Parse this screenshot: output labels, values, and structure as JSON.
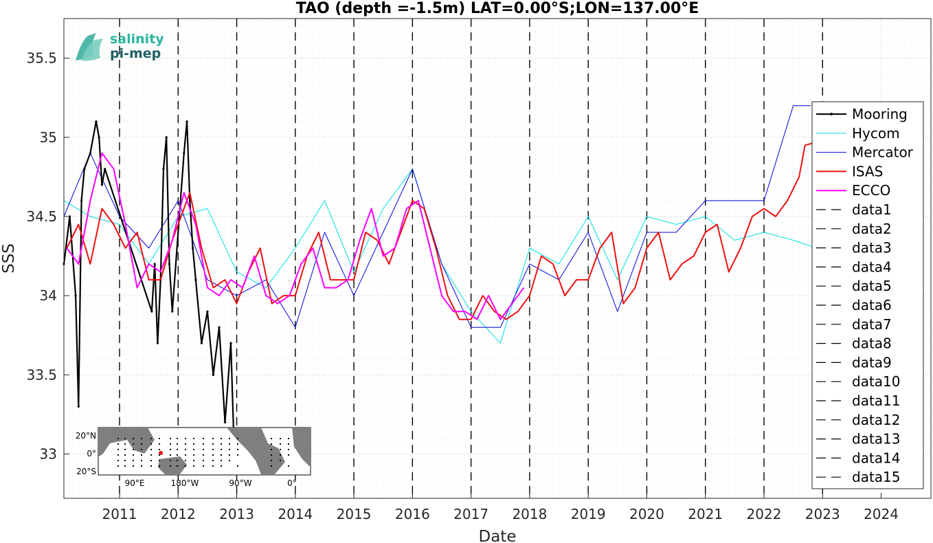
{
  "chart_data": {
    "type": "line",
    "title": "TAO (depth =-1.5m) LAT=0.00°S;LON=137.00°E",
    "xlabel": "Date",
    "ylabel": "SSS",
    "xlim": [
      2010.05,
      2024.85
    ],
    "ylim": [
      32.72,
      35.75
    ],
    "grid": "on (dotted major and minor)",
    "legend_placement": "right",
    "x_ticks": [
      2011,
      2012,
      2013,
      2014,
      2015,
      2016,
      2017,
      2018,
      2019,
      2020,
      2021,
      2022,
      2023,
      2024
    ],
    "x_tick_labels": [
      "2011",
      "2012",
      "2013",
      "2014",
      "2015",
      "2016",
      "2017",
      "2018",
      "2019",
      "2020",
      "2021",
      "2022",
      "2023",
      "2024"
    ],
    "y_ticks": [
      33,
      33.5,
      34,
      34.5,
      35,
      35.5
    ],
    "y_tick_labels": [
      "33",
      "33.5",
      "34",
      "34.5",
      "35",
      "35.5"
    ],
    "vertical_dashed_lines_x": [
      2011,
      2012,
      2013,
      2014,
      2015,
      2016,
      2017,
      2018,
      2019,
      2020,
      2021,
      2022,
      2023
    ],
    "series": [
      {
        "name": "Mooring",
        "color": "#000000",
        "style": "solid-dots",
        "x": [
          2010.05,
          2010.15,
          2010.25,
          2010.3,
          2010.35,
          2010.4,
          2010.5,
          2010.6,
          2010.65,
          2010.7,
          2010.75,
          2011.55,
          2011.6,
          2011.65,
          2011.7,
          2011.75,
          2011.8,
          2011.85,
          2011.9,
          2012.1,
          2012.15,
          2012.2,
          2012.25,
          2012.3,
          2012.4,
          2012.5,
          2012.6,
          2012.7,
          2012.8,
          2012.9,
          2012.95
        ],
        "y": [
          34.2,
          34.5,
          34.0,
          33.3,
          34.6,
          34.8,
          34.9,
          35.1,
          35.0,
          34.7,
          34.8,
          33.9,
          34.2,
          33.7,
          34.1,
          34.8,
          35.0,
          34.2,
          33.9,
          34.9,
          35.1,
          34.6,
          34.3,
          34.1,
          33.7,
          33.9,
          33.5,
          33.8,
          33.2,
          33.7,
          33.1
        ]
      },
      {
        "name": "Hycom",
        "color": "#00e0e0",
        "style": "solid",
        "x": [
          2010.05,
          2010.5,
          2011.0,
          2011.5,
          2012.0,
          2012.5,
          2013.0,
          2013.5,
          2014.0,
          2014.5,
          2015.0,
          2015.5,
          2016.0,
          2016.5,
          2017.0,
          2017.5,
          2018.0,
          2018.5,
          2019.0,
          2019.5,
          2020.0,
          2020.5,
          2021.0,
          2021.5,
          2022.0,
          2022.5,
          2022.9
        ],
        "y": [
          34.6,
          34.5,
          34.45,
          34.2,
          34.5,
          34.55,
          34.15,
          34.05,
          34.3,
          34.6,
          34.15,
          34.55,
          34.8,
          34.2,
          33.9,
          33.7,
          34.3,
          34.2,
          34.5,
          34.1,
          34.5,
          34.45,
          34.5,
          34.35,
          34.4,
          34.35,
          34.3
        ]
      },
      {
        "name": "Mercator",
        "color": "#0000dd",
        "style": "solid",
        "x": [
          2010.05,
          2010.5,
          2011.0,
          2011.5,
          2012.0,
          2012.5,
          2013.0,
          2013.5,
          2014.0,
          2014.5,
          2015.0,
          2015.5,
          2016.0,
          2016.5,
          2017.0,
          2017.5,
          2018.0,
          2018.5,
          2019.0,
          2019.5,
          2020.0,
          2020.5,
          2021.0,
          2021.5,
          2022.0,
          2022.5,
          2022.8
        ],
        "y": [
          34.5,
          34.9,
          34.5,
          34.3,
          34.6,
          34.1,
          34.0,
          34.1,
          33.8,
          34.4,
          34.0,
          34.4,
          34.8,
          34.2,
          33.8,
          33.8,
          34.2,
          34.1,
          34.4,
          33.9,
          34.4,
          34.4,
          34.6,
          34.6,
          34.6,
          35.2,
          35.2
        ]
      },
      {
        "name": "ISAS",
        "color": "#ee1111",
        "style": "solid",
        "x": [
          2010.1,
          2010.3,
          2010.5,
          2010.7,
          2010.9,
          2011.1,
          2011.3,
          2011.5,
          2011.7,
          2011.9,
          2012.1,
          2012.2,
          2012.4,
          2012.6,
          2012.8,
          2013.0,
          2013.2,
          2013.4,
          2013.6,
          2013.8,
          2014.0,
          2014.2,
          2014.4,
          2014.6,
          2014.8,
          2015.0,
          2015.2,
          2015.4,
          2015.6,
          2015.8,
          2016.0,
          2016.2,
          2016.4,
          2016.6,
          2016.8,
          2017.0,
          2017.2,
          2017.4,
          2017.6,
          2017.8,
          2018.0,
          2018.2,
          2018.4,
          2018.6,
          2018.8,
          2019.0,
          2019.2,
          2019.4,
          2019.6,
          2019.8,
          2020.0,
          2020.2,
          2020.4,
          2020.6,
          2020.8,
          2021.0,
          2021.2,
          2021.4,
          2021.6,
          2021.8,
          2022.0,
          2022.2,
          2022.4,
          2022.6,
          2022.7,
          2022.9
        ],
        "y": [
          34.3,
          34.45,
          34.2,
          34.55,
          34.45,
          34.3,
          34.4,
          34.1,
          34.1,
          34.35,
          34.55,
          34.65,
          34.3,
          34.05,
          34.1,
          33.95,
          34.15,
          34.3,
          33.95,
          34.0,
          34.0,
          34.25,
          34.4,
          34.1,
          34.1,
          34.1,
          34.4,
          34.35,
          34.2,
          34.4,
          34.6,
          34.55,
          34.3,
          34.0,
          33.85,
          33.85,
          34.0,
          33.9,
          33.85,
          33.9,
          34.0,
          34.25,
          34.2,
          34.0,
          34.1,
          34.1,
          34.3,
          34.4,
          33.95,
          34.05,
          34.3,
          34.4,
          34.1,
          34.2,
          34.25,
          34.4,
          34.45,
          34.15,
          34.3,
          34.5,
          34.55,
          34.5,
          34.6,
          34.75,
          34.95,
          34.97
        ]
      },
      {
        "name": "ECCO",
        "color": "#ff00ff",
        "style": "solid",
        "x": [
          2010.1,
          2010.3,
          2010.5,
          2010.7,
          2010.9,
          2011.1,
          2011.3,
          2011.5,
          2011.7,
          2011.9,
          2012.1,
          2012.3,
          2012.5,
          2012.7,
          2012.9,
          2013.1,
          2013.3,
          2013.5,
          2013.7,
          2013.9,
          2014.1,
          2014.3,
          2014.5,
          2014.7,
          2014.9,
          2015.1,
          2015.3,
          2015.5,
          2015.7,
          2015.9,
          2016.1,
          2016.3,
          2016.5,
          2016.7,
          2016.9,
          2017.1,
          2017.3,
          2017.5,
          2017.7,
          2017.9
        ],
        "y": [
          34.3,
          34.2,
          34.6,
          34.9,
          34.8,
          34.45,
          34.05,
          34.2,
          34.15,
          34.35,
          34.65,
          34.45,
          34.05,
          34.0,
          34.1,
          34.05,
          34.25,
          34.0,
          33.95,
          34.0,
          34.2,
          34.3,
          34.05,
          34.05,
          34.1,
          34.35,
          34.55,
          34.25,
          34.3,
          34.55,
          34.6,
          34.3,
          34.0,
          33.9,
          33.9,
          33.85,
          34.0,
          33.85,
          33.95,
          34.05
        ]
      }
    ],
    "legend": [
      "Mooring",
      "Hycom",
      "Mercator",
      "ISAS",
      "ECCO",
      "data1",
      "data2",
      "data3",
      "data4",
      "data5",
      "data6",
      "data7",
      "data8",
      "data9",
      "data10",
      "data11",
      "data12",
      "data13",
      "data14",
      "data15"
    ]
  },
  "logo": {
    "line1": "salinity",
    "line2": "pi-mep"
  },
  "inset_map": {
    "y_labels": [
      "20°N",
      "0°",
      "20°S"
    ],
    "x_labels": [
      "90°E",
      "180°W",
      "90°W",
      "0°"
    ]
  }
}
